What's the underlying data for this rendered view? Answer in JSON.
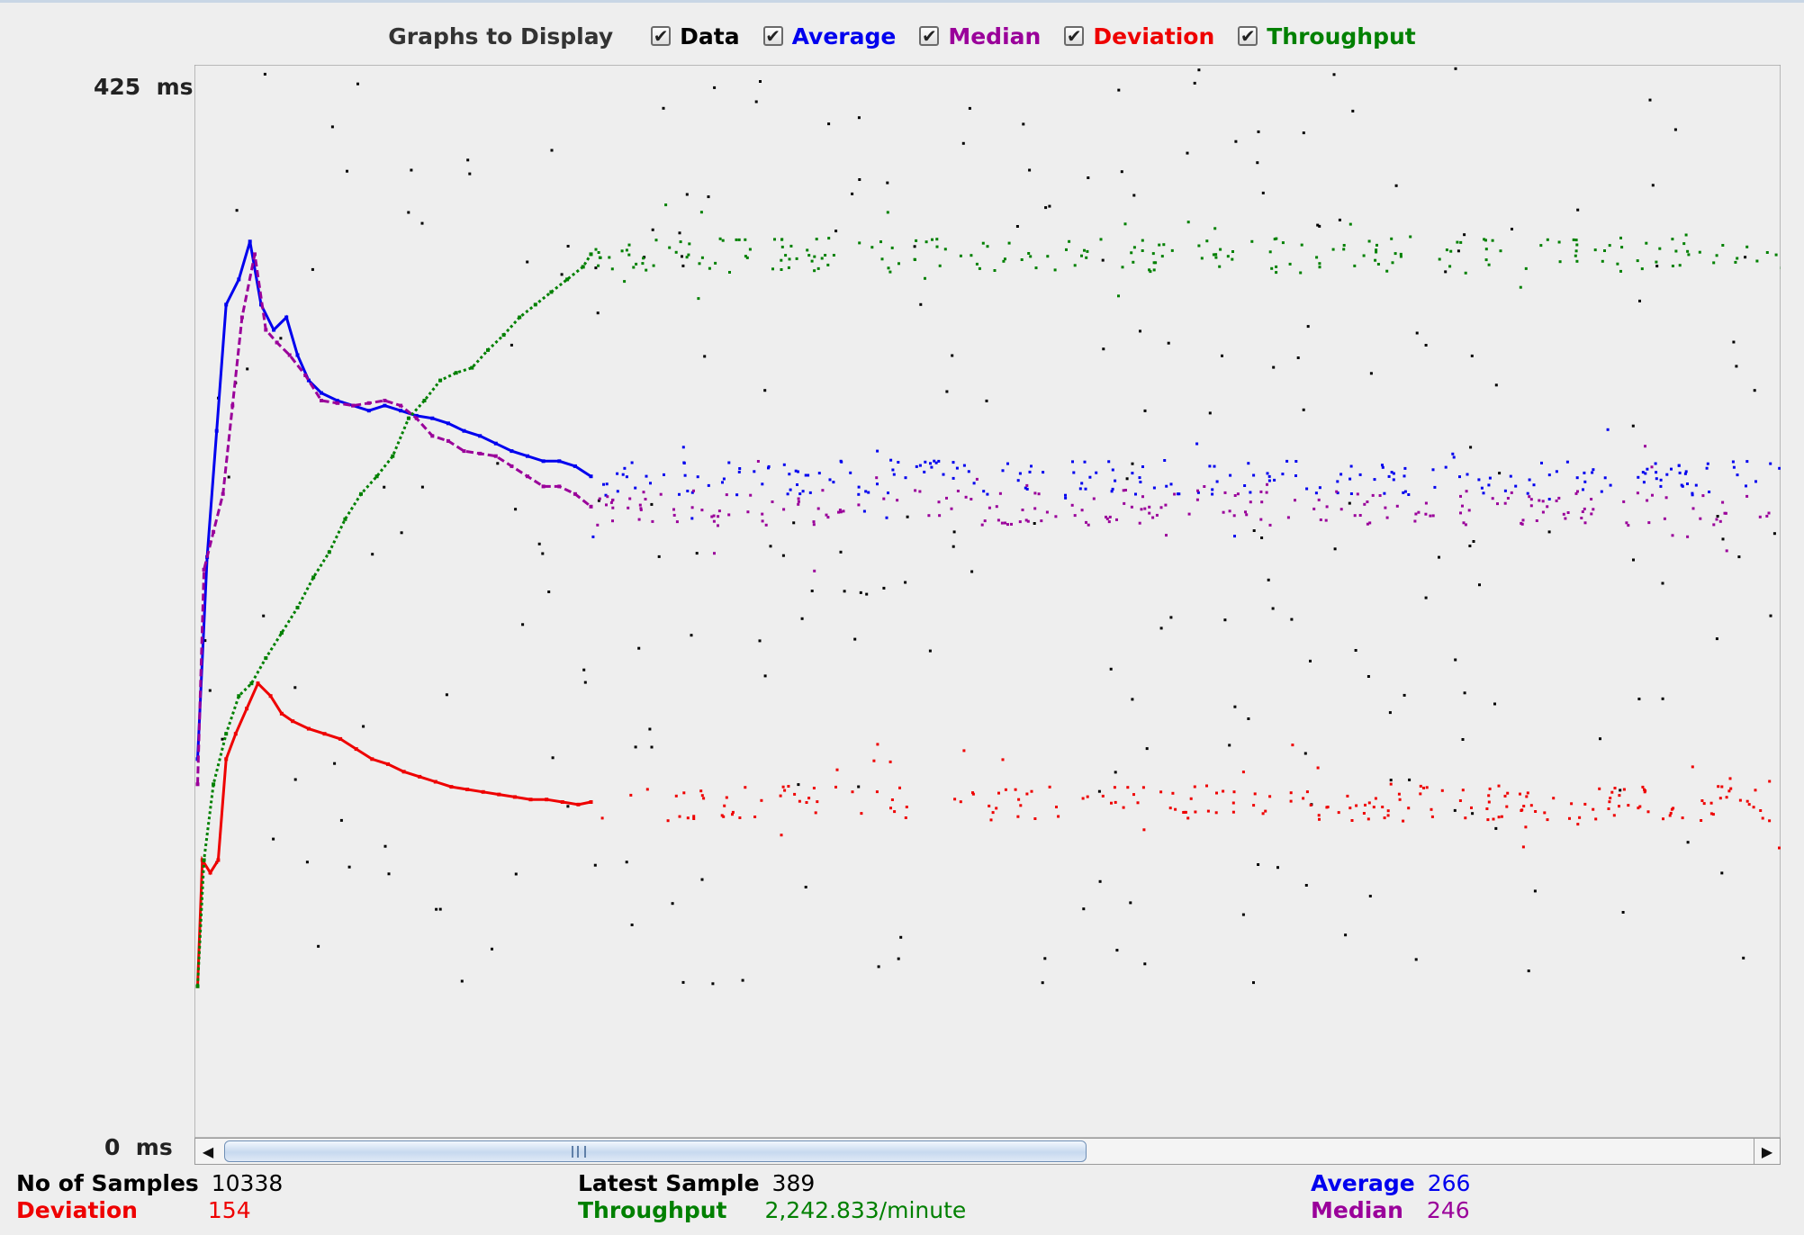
{
  "legend": {
    "title": "Graphs to Display",
    "items": [
      {
        "label": "Data",
        "checked": true,
        "color": "#000000"
      },
      {
        "label": "Average",
        "checked": true,
        "color": "#0000ee"
      },
      {
        "label": "Median",
        "checked": true,
        "color": "#9a009a"
      },
      {
        "label": "Deviation",
        "checked": true,
        "color": "#ee0000"
      },
      {
        "label": "Throughput",
        "checked": true,
        "color": "#008000"
      }
    ],
    "check_glyph": "✔"
  },
  "chart_data": {
    "type": "scatter",
    "y_max_label": "425  ms",
    "y_min_label": "0  ms",
    "ylim": [
      0,
      425
    ],
    "x_unit": "sample index (visible window)",
    "xlim": [
      0,
      1000
    ],
    "grid": false,
    "series": [
      {
        "name": "Average",
        "color": "#0000ee",
        "values": [
          [
            2,
            150
          ],
          [
            8,
            230
          ],
          [
            14,
            280
          ],
          [
            20,
            330
          ],
          [
            28,
            340
          ],
          [
            35,
            355
          ],
          [
            42,
            330
          ],
          [
            50,
            320
          ],
          [
            58,
            325
          ],
          [
            65,
            310
          ],
          [
            72,
            300
          ],
          [
            80,
            295
          ],
          [
            90,
            292
          ],
          [
            100,
            290
          ],
          [
            110,
            288
          ],
          [
            120,
            290
          ],
          [
            130,
            288
          ],
          [
            140,
            286
          ],
          [
            150,
            285
          ],
          [
            160,
            283
          ],
          [
            170,
            280
          ],
          [
            180,
            278
          ],
          [
            190,
            275
          ],
          [
            200,
            272
          ],
          [
            210,
            270
          ],
          [
            220,
            268
          ],
          [
            230,
            268
          ],
          [
            240,
            266
          ],
          [
            250,
            262
          ]
        ]
      },
      {
        "name": "Median",
        "color": "#9a009a",
        "values": [
          [
            2,
            140
          ],
          [
            6,
            225
          ],
          [
            12,
            240
          ],
          [
            18,
            255
          ],
          [
            24,
            290
          ],
          [
            30,
            325
          ],
          [
            38,
            350
          ],
          [
            45,
            320
          ],
          [
            52,
            315
          ],
          [
            60,
            310
          ],
          [
            70,
            302
          ],
          [
            80,
            292
          ],
          [
            90,
            291
          ],
          [
            100,
            290
          ],
          [
            110,
            291
          ],
          [
            120,
            292
          ],
          [
            130,
            290
          ],
          [
            140,
            285
          ],
          [
            150,
            278
          ],
          [
            160,
            276
          ],
          [
            170,
            272
          ],
          [
            180,
            271
          ],
          [
            190,
            270
          ],
          [
            200,
            266
          ],
          [
            210,
            262
          ],
          [
            220,
            258
          ],
          [
            230,
            258
          ],
          [
            240,
            255
          ],
          [
            250,
            250
          ]
        ]
      },
      {
        "name": "Deviation",
        "color": "#ee0000",
        "values": [
          [
            2,
            60
          ],
          [
            5,
            110
          ],
          [
            10,
            105
          ],
          [
            15,
            110
          ],
          [
            20,
            150
          ],
          [
            26,
            160
          ],
          [
            33,
            170
          ],
          [
            40,
            180
          ],
          [
            48,
            175
          ],
          [
            55,
            168
          ],
          [
            62,
            165
          ],
          [
            72,
            162
          ],
          [
            82,
            160
          ],
          [
            92,
            158
          ],
          [
            102,
            154
          ],
          [
            112,
            150
          ],
          [
            122,
            148
          ],
          [
            132,
            145
          ],
          [
            142,
            143
          ],
          [
            152,
            141
          ],
          [
            162,
            139
          ],
          [
            172,
            138
          ],
          [
            182,
            137
          ],
          [
            192,
            136
          ],
          [
            202,
            135
          ],
          [
            212,
            134
          ],
          [
            222,
            134
          ],
          [
            232,
            133
          ],
          [
            242,
            132
          ],
          [
            250,
            133
          ]
        ]
      },
      {
        "name": "Throughput",
        "color": "#008000",
        "values": [
          [
            2,
            60
          ],
          [
            6,
            110
          ],
          [
            12,
            140
          ],
          [
            20,
            160
          ],
          [
            28,
            175
          ],
          [
            36,
            180
          ],
          [
            45,
            190
          ],
          [
            55,
            200
          ],
          [
            65,
            210
          ],
          [
            75,
            222
          ],
          [
            85,
            232
          ],
          [
            95,
            245
          ],
          [
            105,
            255
          ],
          [
            115,
            262
          ],
          [
            125,
            270
          ],
          [
            135,
            285
          ],
          [
            145,
            292
          ],
          [
            155,
            300
          ],
          [
            165,
            303
          ],
          [
            175,
            305
          ],
          [
            185,
            312
          ],
          [
            195,
            318
          ],
          [
            205,
            325
          ],
          [
            215,
            330
          ],
          [
            225,
            335
          ],
          [
            235,
            340
          ],
          [
            245,
            345
          ],
          [
            250,
            350
          ]
        ]
      }
    ],
    "summary": {
      "no_of_samples_label": "No of Samples",
      "no_of_samples": "10338",
      "deviation_label": "Deviation",
      "deviation": "154",
      "latest_sample_label": "Latest Sample",
      "latest_sample": "389",
      "throughput_label": "Throughput",
      "throughput": "2,242.833/minute",
      "average_label": "Average",
      "average": "266",
      "median_label": "Median",
      "median": "246"
    }
  },
  "scrollbar": {
    "left_arrow": "◀",
    "right_arrow": "▶"
  }
}
